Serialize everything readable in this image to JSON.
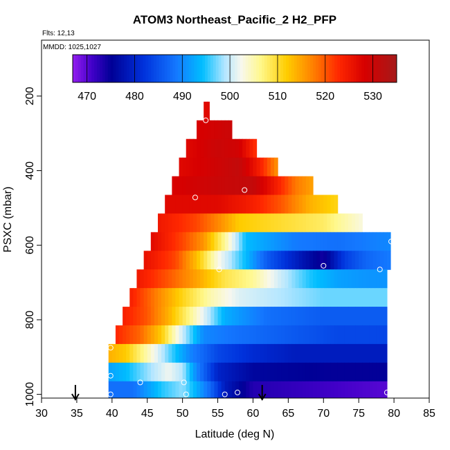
{
  "chart_data": {
    "type": "heatmap",
    "title": "ATOM3 Northeast_Pacific_2 H2_PFP",
    "flights_label": "Flts: 12,13",
    "dates_label": "MMDD: 1025,1027",
    "xlabel": "Latitude (deg N)",
    "ylabel": "PSXC (mbar)",
    "xlim": [
      30,
      85
    ],
    "ylim": [
      1010,
      50
    ],
    "y_inverted": true,
    "x_ticks": [
      30,
      35,
      40,
      45,
      50,
      55,
      60,
      65,
      70,
      75,
      80,
      85
    ],
    "y_ticks": [
      200,
      400,
      600,
      800,
      1000
    ],
    "colorbar": {
      "range": [
        467,
        535
      ],
      "ticks": [
        470,
        480,
        490,
        500,
        510,
        520,
        530
      ]
    },
    "layers": [
      {
        "p_top": 215,
        "p_bot": 265,
        "lat_min": 53.0,
        "lat_max": 53.8,
        "values": [
          [
            53.4,
            527
          ]
        ]
      },
      {
        "p_top": 265,
        "p_bot": 315,
        "lat_min": 52.0,
        "lat_max": 57.0,
        "values": [
          [
            52.0,
            528
          ],
          [
            57.0,
            530
          ]
        ]
      },
      {
        "p_top": 315,
        "p_bot": 365,
        "lat_min": 50.5,
        "lat_max": 60.5,
        "values": [
          [
            50.5,
            527
          ],
          [
            55.0,
            530
          ],
          [
            58.0,
            529
          ],
          [
            60.5,
            522
          ]
        ]
      },
      {
        "p_top": 365,
        "p_bot": 415,
        "lat_min": 49.5,
        "lat_max": 63.5,
        "values": [
          [
            49.5,
            527
          ],
          [
            54.0,
            529
          ],
          [
            58.0,
            531
          ],
          [
            61.0,
            524
          ],
          [
            63.5,
            516
          ]
        ]
      },
      {
        "p_top": 415,
        "p_bot": 465,
        "lat_min": 48.5,
        "lat_max": 68.5,
        "values": [
          [
            48.5,
            528
          ],
          [
            55.0,
            530
          ],
          [
            60.0,
            531
          ],
          [
            63.0,
            525
          ],
          [
            66.0,
            518
          ],
          [
            68.5,
            515
          ]
        ]
      },
      {
        "p_top": 465,
        "p_bot": 515,
        "lat_min": 47.5,
        "lat_max": 72.0,
        "values": [
          [
            47.5,
            527
          ],
          [
            55.0,
            527
          ],
          [
            60.0,
            524
          ],
          [
            64.0,
            520
          ],
          [
            68.0,
            514
          ],
          [
            72.0,
            511
          ]
        ]
      },
      {
        "p_top": 515,
        "p_bot": 565,
        "lat_min": 46.5,
        "lat_max": 75.5,
        "values": [
          [
            46.5,
            525
          ],
          [
            52.0,
            521
          ],
          [
            55.0,
            517
          ],
          [
            58.0,
            512
          ],
          [
            64.0,
            510
          ],
          [
            70.0,
            508
          ],
          [
            75.5,
            503
          ]
        ]
      },
      {
        "p_top": 565,
        "p_bot": 615,
        "lat_min": 45.5,
        "lat_max": 79.5,
        "values": [
          [
            45.5,
            527
          ],
          [
            50.0,
            521
          ],
          [
            53.0,
            516
          ],
          [
            56.0,
            506
          ],
          [
            59.0,
            494
          ],
          [
            66.0,
            489
          ],
          [
            72.0,
            488
          ],
          [
            79.5,
            490
          ]
        ]
      },
      {
        "p_top": 615,
        "p_bot": 665,
        "lat_min": 44.5,
        "lat_max": 79.5,
        "values": [
          [
            44.5,
            526
          ],
          [
            49.0,
            521
          ],
          [
            52.0,
            513
          ],
          [
            55.0,
            503
          ],
          [
            59.0,
            494
          ],
          [
            62.0,
            486
          ],
          [
            67.0,
            478
          ],
          [
            70.0,
            474
          ],
          [
            73.0,
            483
          ],
          [
            76.0,
            487
          ],
          [
            79.5,
            489
          ]
        ]
      },
      {
        "p_top": 665,
        "p_bot": 715,
        "lat_min": 43.5,
        "lat_max": 79.0,
        "values": [
          [
            43.5,
            525
          ],
          [
            48.0,
            520
          ],
          [
            52.0,
            515
          ],
          [
            56.0,
            509
          ],
          [
            60.0,
            506
          ],
          [
            64.0,
            500
          ],
          [
            68.0,
            495
          ],
          [
            72.0,
            492
          ],
          [
            76.0,
            491
          ],
          [
            79.0,
            491
          ]
        ]
      },
      {
        "p_top": 715,
        "p_bot": 765,
        "lat_min": 42.5,
        "lat_max": 79.0,
        "values": [
          [
            42.5,
            524
          ],
          [
            46.0,
            518
          ],
          [
            50.0,
            511
          ],
          [
            54.0,
            505
          ],
          [
            58.0,
            501
          ],
          [
            64.0,
            499
          ],
          [
            70.0,
            497
          ],
          [
            79.0,
            497
          ]
        ]
      },
      {
        "p_top": 765,
        "p_bot": 815,
        "lat_min": 41.5,
        "lat_max": 79.0,
        "values": [
          [
            41.5,
            524
          ],
          [
            45.0,
            520
          ],
          [
            48.0,
            514
          ],
          [
            52.0,
            504
          ],
          [
            56.0,
            493
          ],
          [
            62.0,
            488
          ],
          [
            70.0,
            486
          ],
          [
            79.0,
            486
          ]
        ]
      },
      {
        "p_top": 815,
        "p_bot": 865,
        "lat_min": 40.5,
        "lat_max": 79.0,
        "values": [
          [
            40.5,
            523
          ],
          [
            44.0,
            519
          ],
          [
            47.0,
            512
          ],
          [
            50.0,
            500
          ],
          [
            53.0,
            490
          ],
          [
            58.0,
            488
          ],
          [
            65.0,
            486
          ],
          [
            72.0,
            484
          ],
          [
            79.0,
            484
          ]
        ]
      },
      {
        "p_top": 865,
        "p_bot": 915,
        "lat_min": 39.5,
        "lat_max": 79.0,
        "values": [
          [
            39.5,
            514
          ],
          [
            42.0,
            512
          ],
          [
            45.0,
            505
          ],
          [
            48.0,
            497
          ],
          [
            51.0,
            490
          ],
          [
            55.0,
            484
          ],
          [
            60.0,
            481
          ],
          [
            66.0,
            479
          ],
          [
            72.0,
            479
          ],
          [
            79.0,
            479
          ]
        ]
      },
      {
        "p_top": 915,
        "p_bot": 965,
        "lat_min": 39.5,
        "lat_max": 79.0,
        "values": [
          [
            39.5,
            492
          ],
          [
            42.0,
            494
          ],
          [
            45.0,
            498
          ],
          [
            48.0,
            502
          ],
          [
            50.0,
            499
          ],
          [
            52.0,
            490
          ],
          [
            55.0,
            480
          ],
          [
            60.0,
            476
          ],
          [
            70.0,
            475
          ],
          [
            79.0,
            475
          ]
        ]
      },
      {
        "p_top": 965,
        "p_bot": 1010,
        "lat_min": 39.5,
        "lat_max": 79.0,
        "values": [
          [
            39.5,
            488
          ],
          [
            43.0,
            488
          ],
          [
            47.0,
            495
          ],
          [
            50.0,
            498
          ],
          [
            52.0,
            493
          ],
          [
            54.0,
            487
          ],
          [
            56.0,
            479
          ],
          [
            60.0,
            473
          ],
          [
            66.0,
            472
          ],
          [
            72.0,
            471
          ],
          [
            79.0,
            470
          ]
        ]
      }
    ],
    "sample_points": [
      [
        53.3,
        265
      ],
      [
        51.8,
        472
      ],
      [
        58.8,
        452
      ],
      [
        55.2,
        665
      ],
      [
        70.0,
        655
      ],
      [
        78.0,
        665
      ],
      [
        79.6,
        590
      ],
      [
        39.8,
        875
      ],
      [
        39.8,
        950
      ],
      [
        44.0,
        968
      ],
      [
        50.2,
        968
      ],
      [
        39.8,
        1000
      ],
      [
        50.5,
        1000
      ],
      [
        56.0,
        1000
      ],
      [
        57.8,
        995
      ],
      [
        79.0,
        995
      ]
    ],
    "arrows": [
      34.8,
      61.3
    ]
  }
}
